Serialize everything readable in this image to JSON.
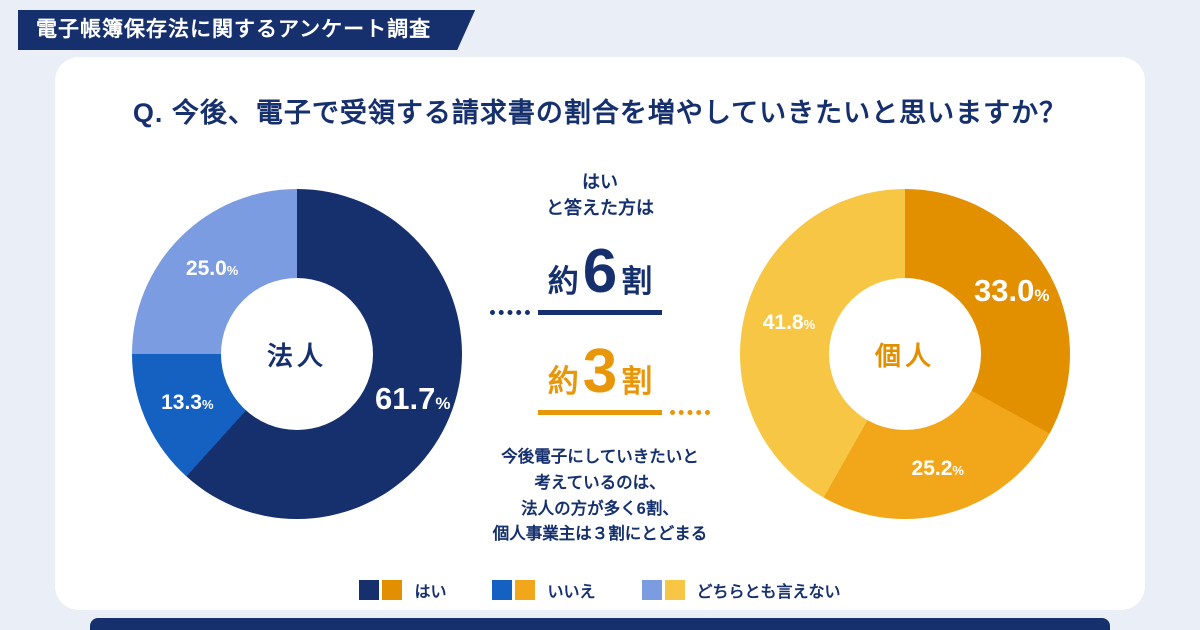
{
  "banner": {
    "title": "電子帳簿保存法に関するアンケート調査"
  },
  "question": "Q. 今後、電子で受領する請求書の割合を増やしていきたいと思いますか？",
  "colors": {
    "navy": "#16306e",
    "blue": "#1461c1",
    "light_blue": "#7b9ce1",
    "amber": "#e28f00",
    "orange": "#f2a71b",
    "gold": "#f7c644",
    "amber_text": "#e8960a",
    "bg": "#e9eef7",
    "card": "#ffffff"
  },
  "chart_data": [
    {
      "type": "pie",
      "donut": true,
      "title": "法人",
      "labels": [
        "はい",
        "いいえ",
        "どちらとも言えない"
      ],
      "values": [
        61.7,
        13.3,
        25.0
      ],
      "colors": [
        "#16306e",
        "#1461c1",
        "#7b9ce1"
      ],
      "start_angle_deg": 0,
      "direction": "clockwise",
      "value_suffix": "%"
    },
    {
      "type": "pie",
      "donut": true,
      "title": "個人",
      "labels": [
        "はい",
        "いいえ",
        "どちらとも言えない"
      ],
      "values": [
        33.0,
        25.2,
        41.8
      ],
      "colors": [
        "#e28f00",
        "#f2a71b",
        "#f7c644"
      ],
      "start_angle_deg": 0,
      "direction": "clockwise",
      "value_suffix": "%"
    }
  ],
  "callout": {
    "lead_line1": "はい",
    "lead_line2": "と答えた方は",
    "corporate": {
      "prefix": "約",
      "number": "6",
      "suffix": "割"
    },
    "individual": {
      "prefix": "約",
      "number": "3",
      "suffix": "割"
    },
    "note_lines": [
      "今後電子にしていきたいと",
      "考えているのは、",
      "法人の方が多く6割、",
      "個人事業主は３割にとどまる"
    ]
  },
  "legend": [
    {
      "label": "はい",
      "colors": [
        "#16306e",
        "#e28f00"
      ]
    },
    {
      "label": "いいえ",
      "colors": [
        "#1461c1",
        "#f2a71b"
      ]
    },
    {
      "label": "どちらとも言えない",
      "colors": [
        "#7b9ce1",
        "#f7c644"
      ]
    }
  ]
}
